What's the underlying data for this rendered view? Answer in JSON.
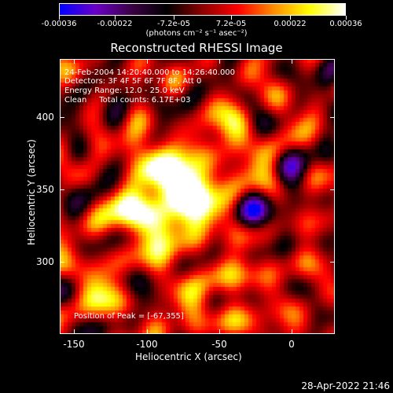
{
  "colorbar": {
    "labels": [
      "-0.00036",
      "-0.00022",
      "-7.2e-05",
      "7.2e-05",
      "0.00022",
      "0.00036"
    ],
    "values": [
      -0.00036,
      -0.00022,
      -7.2e-05,
      7.2e-05,
      0.00022,
      0.00036
    ],
    "range": [
      -0.00036,
      0.00036
    ],
    "units": "(photons cm⁻² s⁻¹ asec⁻²)",
    "colors": [
      "#0000ff",
      "#6a00c8",
      "#3c0046",
      "#000000",
      "#8c0000",
      "#ff0000",
      "#ff8c00",
      "#ffff00",
      "#ffffff"
    ]
  },
  "title": "Reconstructed RHESSI Image",
  "annotations": {
    "time_range": "24-Feb-2004 14:20:40.000 to 14:26:40.000",
    "detectors": "Detectors: 3F 4F 5F 6F 7F 8F, Att 0",
    "energy": "Energy Range: 12.0 - 25.0 keV",
    "clean": "Clean     Total counts: 6.17E+03",
    "peak": "Position of Peak = [-67,355]"
  },
  "timestamp": "28-Apr-2022 21:46",
  "chart_data": {
    "type": "heatmap",
    "title": "Reconstructed RHESSI Image",
    "xlabel": "Heliocentric X (arcsec)",
    "ylabel": "Heliocentric Y (arcsec)",
    "xlim": [
      -160,
      30
    ],
    "ylim": [
      250,
      440
    ],
    "xticks": [
      -150,
      -100,
      -50,
      0
    ],
    "xtick_labels": [
      "-150",
      "-100",
      "-50",
      "0"
    ],
    "yticks": [
      300,
      350,
      400
    ],
    "ytick_labels": [
      "300",
      "350",
      "400"
    ],
    "colorscale": "red-temperature (blue=negative, white=positive)",
    "peak": [
      -67,
      355
    ],
    "blobs": [
      {
        "x": -67,
        "y": 355,
        "amp": 1.0,
        "sigma": 17
      },
      {
        "x": -95,
        "y": 345,
        "amp": 0.7,
        "sigma": 15
      },
      {
        "x": -85,
        "y": 320,
        "amp": 0.55,
        "sigma": 13
      },
      {
        "x": -120,
        "y": 330,
        "amp": 0.5,
        "sigma": 14
      },
      {
        "x": -130,
        "y": 285,
        "amp": 0.45,
        "sigma": 12
      },
      {
        "x": -110,
        "y": 380,
        "amp": 0.45,
        "sigma": 10
      },
      {
        "x": -40,
        "y": 395,
        "amp": 0.5,
        "sigma": 10
      },
      {
        "x": -20,
        "y": 372,
        "amp": 0.45,
        "sigma": 9
      },
      {
        "x": -60,
        "y": 290,
        "amp": 0.4,
        "sigma": 10
      },
      {
        "x": -40,
        "y": 265,
        "amp": 0.4,
        "sigma": 12
      },
      {
        "x": 10,
        "y": 300,
        "amp": 0.35,
        "sigma": 9
      },
      {
        "x": -5,
        "y": 400,
        "amp": 0.35,
        "sigma": 8
      },
      {
        "x": 15,
        "y": 345,
        "amp": 0.25,
        "sigma": 9
      },
      {
        "x": -145,
        "y": 360,
        "amp": 0.3,
        "sigma": 8
      },
      {
        "x": -85,
        "y": 265,
        "amp": 0.4,
        "sigma": 10
      },
      {
        "x": -100,
        "y": 420,
        "amp": 0.3,
        "sigma": 9
      },
      {
        "x": -30,
        "y": 425,
        "amp": 0.25,
        "sigma": 8
      },
      {
        "x": -130,
        "y": 355,
        "amp": -0.45,
        "sigma": 11
      },
      {
        "x": -115,
        "y": 410,
        "amp": -0.4,
        "sigma": 12
      },
      {
        "x": -10,
        "y": 425,
        "amp": -0.35,
        "sigma": 10
      },
      {
        "x": -5,
        "y": 330,
        "amp": -0.35,
        "sigma": 9
      },
      {
        "x": 20,
        "y": 390,
        "amp": -0.4,
        "sigma": 9
      },
      {
        "x": -5,
        "y": 365,
        "amp": -0.35,
        "sigma": 9
      },
      {
        "x": -150,
        "y": 400,
        "amp": -0.3,
        "sigma": 9
      },
      {
        "x": -30,
        "y": 335,
        "amp": -0.3,
        "sigma": 9
      },
      {
        "x": 25,
        "y": 265,
        "amp": -0.25,
        "sigma": 9
      }
    ]
  }
}
